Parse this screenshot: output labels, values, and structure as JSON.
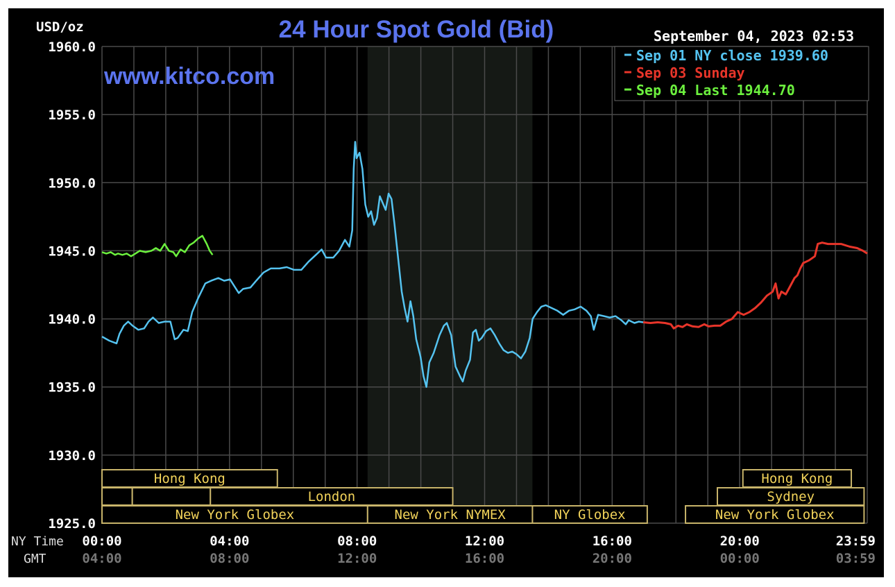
{
  "chart_data": {
    "type": "line",
    "title": "24 Hour Spot Gold (Bid)",
    "watermark": "www.kitco.com",
    "unit_label": "USD/oz",
    "timestamp": "September 04, 2023 02:53",
    "ylim": [
      1925,
      1960
    ],
    "y_ticks": [
      "1960.0",
      "1955.0",
      "1950.0",
      "1945.0",
      "1940.0",
      "1935.0",
      "1930.0",
      "1925.0"
    ],
    "y_tick_values": [
      1960,
      1955,
      1950,
      1945,
      1940,
      1935,
      1930,
      1925
    ],
    "xlim_hours": [
      0,
      24
    ],
    "x_row_labels": {
      "ny": "NY Time",
      "gmt": "GMT"
    },
    "x_ticks_ny": [
      "00:00",
      "04:00",
      "08:00",
      "12:00",
      "16:00",
      "20:00",
      "23:59"
    ],
    "x_ticks_gmt": [
      "04:00",
      "08:00",
      "12:00",
      "16:00",
      "20:00",
      "00:00",
      "03:59"
    ],
    "x_tick_hours": [
      0,
      4,
      8,
      12,
      16,
      20,
      24
    ],
    "grid": true,
    "legend_position": "top-right",
    "shaded_session_hours": [
      8.33,
      13.5
    ],
    "series": [
      {
        "name": "Sep 01 NY close 1939.60",
        "color": "#55c3f0",
        "points": [
          [
            0,
            1938.7
          ],
          [
            0.25,
            1938.4
          ],
          [
            0.5,
            1938.2
          ],
          [
            0.6,
            1938.9
          ],
          [
            0.75,
            1939.5
          ],
          [
            0.9,
            1939.8
          ],
          [
            1.05,
            1939.5
          ],
          [
            1.25,
            1939.2
          ],
          [
            1.45,
            1939.3
          ],
          [
            1.6,
            1939.8
          ],
          [
            1.75,
            1940.1
          ],
          [
            1.95,
            1939.7
          ],
          [
            2.15,
            1939.8
          ],
          [
            2.35,
            1939.8
          ],
          [
            2.5,
            1938.5
          ],
          [
            2.6,
            1938.6
          ],
          [
            2.8,
            1939.2
          ],
          [
            2.95,
            1939.1
          ],
          [
            3.1,
            1940.5
          ],
          [
            3.3,
            1941.5
          ],
          [
            3.55,
            1942.6
          ],
          [
            3.75,
            1942.8
          ],
          [
            4.0,
            1943.0
          ],
          [
            4.2,
            1942.8
          ],
          [
            4.4,
            1942.9
          ],
          [
            4.55,
            1942.4
          ],
          [
            4.7,
            1941.9
          ],
          [
            4.85,
            1942.2
          ],
          [
            5.1,
            1942.3
          ],
          [
            5.3,
            1942.8
          ],
          [
            5.55,
            1943.4
          ],
          [
            5.8,
            1943.7
          ],
          [
            6.1,
            1943.7
          ],
          [
            6.35,
            1943.8
          ],
          [
            6.6,
            1943.6
          ],
          [
            6.85,
            1943.6
          ],
          [
            7.1,
            1944.2
          ],
          [
            7.35,
            1944.7
          ],
          [
            7.55,
            1945.1
          ],
          [
            7.7,
            1944.5
          ],
          [
            7.95,
            1944.5
          ],
          [
            8.15,
            1945.0
          ],
          [
            8.35,
            1945.8
          ],
          [
            8.5,
            1945.3
          ],
          [
            8.6,
            1946.5
          ],
          [
            8.65,
            1951.0
          ],
          [
            8.7,
            1953.0
          ],
          [
            8.75,
            1951.8
          ],
          [
            8.85,
            1952.2
          ],
          [
            8.95,
            1951.0
          ],
          [
            9.05,
            1948.4
          ],
          [
            9.15,
            1947.5
          ],
          [
            9.25,
            1947.9
          ],
          [
            9.35,
            1946.9
          ],
          [
            9.45,
            1947.4
          ],
          [
            9.55,
            1949.0
          ],
          [
            9.65,
            1948.5
          ],
          [
            9.75,
            1948.0
          ],
          [
            9.85,
            1949.2
          ],
          [
            9.95,
            1948.8
          ],
          [
            10.05,
            1947.0
          ],
          [
            10.2,
            1944.0
          ],
          [
            10.3,
            1942.0
          ],
          [
            10.4,
            1940.8
          ],
          [
            10.5,
            1939.8
          ],
          [
            10.6,
            1941.3
          ],
          [
            10.7,
            1940.2
          ],
          [
            10.8,
            1938.5
          ],
          [
            10.95,
            1937.2
          ],
          [
            11.05,
            1935.8
          ],
          [
            11.15,
            1935.0
          ],
          [
            11.25,
            1936.8
          ],
          [
            11.4,
            1937.5
          ],
          [
            11.6,
            1938.8
          ],
          [
            11.75,
            1939.5
          ],
          [
            11.85,
            1939.7
          ],
          [
            12.0,
            1938.8
          ],
          [
            12.15,
            1936.5
          ],
          [
            12.3,
            1935.8
          ],
          [
            12.4,
            1935.4
          ],
          [
            12.5,
            1936.2
          ],
          [
            12.65,
            1937.0
          ],
          [
            12.75,
            1939.0
          ],
          [
            12.85,
            1939.2
          ],
          [
            12.95,
            1938.4
          ],
          [
            13.05,
            1938.6
          ],
          [
            13.2,
            1939.1
          ],
          [
            13.35,
            1939.3
          ],
          [
            13.5,
            1938.8
          ],
          [
            13.65,
            1938.2
          ],
          [
            13.8,
            1937.7
          ],
          [
            13.95,
            1937.5
          ],
          [
            14.1,
            1937.6
          ],
          [
            14.25,
            1937.4
          ],
          [
            14.4,
            1937.1
          ],
          [
            14.55,
            1937.6
          ],
          [
            14.7,
            1938.6
          ],
          [
            14.8,
            1940.0
          ],
          [
            14.95,
            1940.5
          ],
          [
            15.1,
            1940.9
          ],
          [
            15.25,
            1941.0
          ],
          [
            15.45,
            1940.8
          ],
          [
            15.65,
            1940.6
          ],
          [
            15.85,
            1940.3
          ],
          [
            16.05,
            1940.6
          ],
          [
            16.25,
            1940.7
          ],
          [
            16.45,
            1940.9
          ],
          [
            16.65,
            1940.6
          ],
          [
            16.8,
            1940.2
          ],
          [
            16.9,
            1939.2
          ],
          [
            17.05,
            1940.3
          ],
          [
            17.25,
            1940.2
          ],
          [
            17.45,
            1940.1
          ],
          [
            17.65,
            1940.2
          ],
          [
            17.85,
            1939.9
          ],
          [
            18.0,
            1939.6
          ],
          [
            18.1,
            1939.9
          ],
          [
            18.3,
            1939.7
          ],
          [
            18.45,
            1939.8
          ],
          [
            18.6,
            1939.75
          ]
        ]
      },
      {
        "name": "Sep 03 Sunday",
        "color": "#e8352a",
        "points": [
          [
            18.6,
            1939.75
          ],
          [
            18.85,
            1939.7
          ],
          [
            19.1,
            1939.75
          ],
          [
            19.35,
            1939.7
          ],
          [
            19.55,
            1939.6
          ],
          [
            19.65,
            1939.3
          ],
          [
            19.8,
            1939.5
          ],
          [
            19.95,
            1939.4
          ],
          [
            20.1,
            1939.6
          ],
          [
            20.3,
            1939.45
          ],
          [
            20.5,
            1939.4
          ],
          [
            20.7,
            1939.6
          ],
          [
            20.85,
            1939.45
          ],
          [
            21.05,
            1939.5
          ],
          [
            21.25,
            1939.5
          ],
          [
            21.45,
            1939.8
          ],
          [
            21.65,
            1940.0
          ],
          [
            21.85,
            1940.5
          ],
          [
            22.05,
            1940.3
          ],
          [
            22.25,
            1940.5
          ],
          [
            22.45,
            1940.8
          ],
          [
            22.65,
            1941.2
          ],
          [
            22.85,
            1941.7
          ],
          [
            23.05,
            1942.0
          ],
          [
            23.15,
            1942.6
          ],
          [
            23.25,
            1941.5
          ],
          [
            23.35,
            1942.0
          ],
          [
            23.5,
            1941.8
          ],
          [
            23.65,
            1942.4
          ],
          [
            23.8,
            1943.0
          ],
          [
            23.9,
            1943.2
          ],
          [
            24.0,
            1943.7
          ],
          [
            24.1,
            1944.1
          ],
          [
            24.3,
            1944.3
          ],
          [
            24.5,
            1944.6
          ],
          [
            24.6,
            1945.5
          ],
          [
            24.75,
            1945.6
          ],
          [
            24.95,
            1945.5
          ],
          [
            25.15,
            1945.5
          ],
          [
            25.4,
            1945.5
          ],
          [
            25.7,
            1945.3
          ],
          [
            25.95,
            1945.2
          ],
          [
            26.15,
            1945.0
          ],
          [
            26.3,
            1944.8
          ]
        ]
      },
      {
        "name": "Sep 04 Last 1944.70",
        "color": "#6cf03e",
        "points": [
          [
            0,
            1944.9
          ],
          [
            0.15,
            1944.8
          ],
          [
            0.3,
            1944.9
          ],
          [
            0.45,
            1944.7
          ],
          [
            0.55,
            1944.8
          ],
          [
            0.7,
            1944.7
          ],
          [
            0.85,
            1944.8
          ],
          [
            1.0,
            1944.6
          ],
          [
            1.15,
            1944.8
          ],
          [
            1.3,
            1945.0
          ],
          [
            1.5,
            1944.9
          ],
          [
            1.7,
            1945.0
          ],
          [
            1.85,
            1945.2
          ],
          [
            2.0,
            1945.0
          ],
          [
            2.15,
            1945.5
          ],
          [
            2.3,
            1945.0
          ],
          [
            2.45,
            1944.9
          ],
          [
            2.55,
            1944.6
          ],
          [
            2.7,
            1945.1
          ],
          [
            2.85,
            1944.9
          ],
          [
            3.0,
            1945.4
          ],
          [
            3.15,
            1945.6
          ],
          [
            3.3,
            1945.9
          ],
          [
            3.45,
            1946.1
          ],
          [
            3.6,
            1945.5
          ],
          [
            3.7,
            1945.0
          ],
          [
            3.8,
            1944.7
          ]
        ]
      }
    ],
    "session_rows": [
      [
        {
          "label": "",
          "start": 0,
          "end": 12.0,
          "open": false
        },
        {
          "label": "Hong Kong",
          "start": 0,
          "end": 5.5
        },
        {
          "label": "Hong Kong",
          "start": 20.1,
          "end": 23.5
        }
      ],
      [
        {
          "label": "",
          "start": 0,
          "end": 0.95
        },
        {
          "label": "",
          "start": 0.95,
          "end": 3.4
        },
        {
          "label": "London",
          "start": 3.4,
          "end": 11.0
        },
        {
          "label": "Sydney",
          "start": 19.3,
          "end": 23.9
        }
      ],
      [
        {
          "label": "New York Globex",
          "start": 0,
          "end": 8.33
        },
        {
          "label": "New York NYMEX",
          "start": 8.33,
          "end": 13.5
        },
        {
          "label": "NY Globex",
          "start": 13.5,
          "end": 17.1
        },
        {
          "label": "New York Globex",
          "start": 18.3,
          "end": 23.9
        }
      ]
    ]
  }
}
